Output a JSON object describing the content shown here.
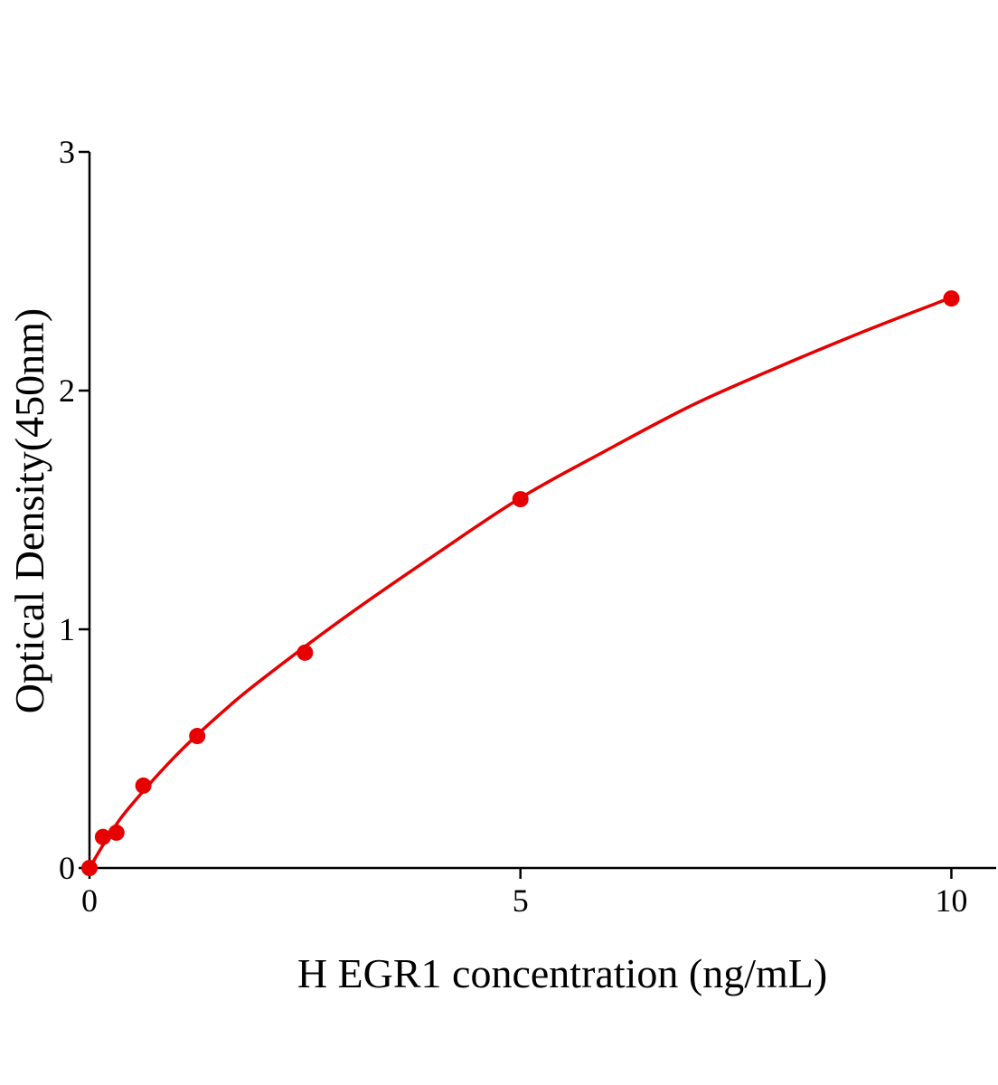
{
  "chart_data": {
    "type": "scatter",
    "x_label": "H EGR1 concentration (ng/mL)",
    "y_label": "Optical Density(450nm)",
    "xlim": [
      0,
      10.52
    ],
    "ylim": [
      0,
      3
    ],
    "xticks": [
      0,
      5,
      10
    ],
    "yticks": [
      0,
      1,
      2,
      3
    ],
    "color": "#e60000",
    "points": {
      "x": [
        0,
        0.156,
        0.3125,
        0.625,
        1.25,
        2.5,
        5,
        10
      ],
      "values": [
        0,
        0.13,
        0.148,
        0.345,
        0.553,
        0.902,
        1.545,
        2.386
      ]
    },
    "fit": {
      "x": [
        0,
        0.25,
        0.5,
        1,
        1.5,
        2,
        3,
        4,
        5,
        6,
        7,
        8,
        9,
        10
      ],
      "values": [
        0,
        0.15,
        0.27,
        0.47,
        0.64,
        0.79,
        1.06,
        1.31,
        1.55,
        1.75,
        1.94,
        2.1,
        2.25,
        2.39
      ]
    }
  }
}
